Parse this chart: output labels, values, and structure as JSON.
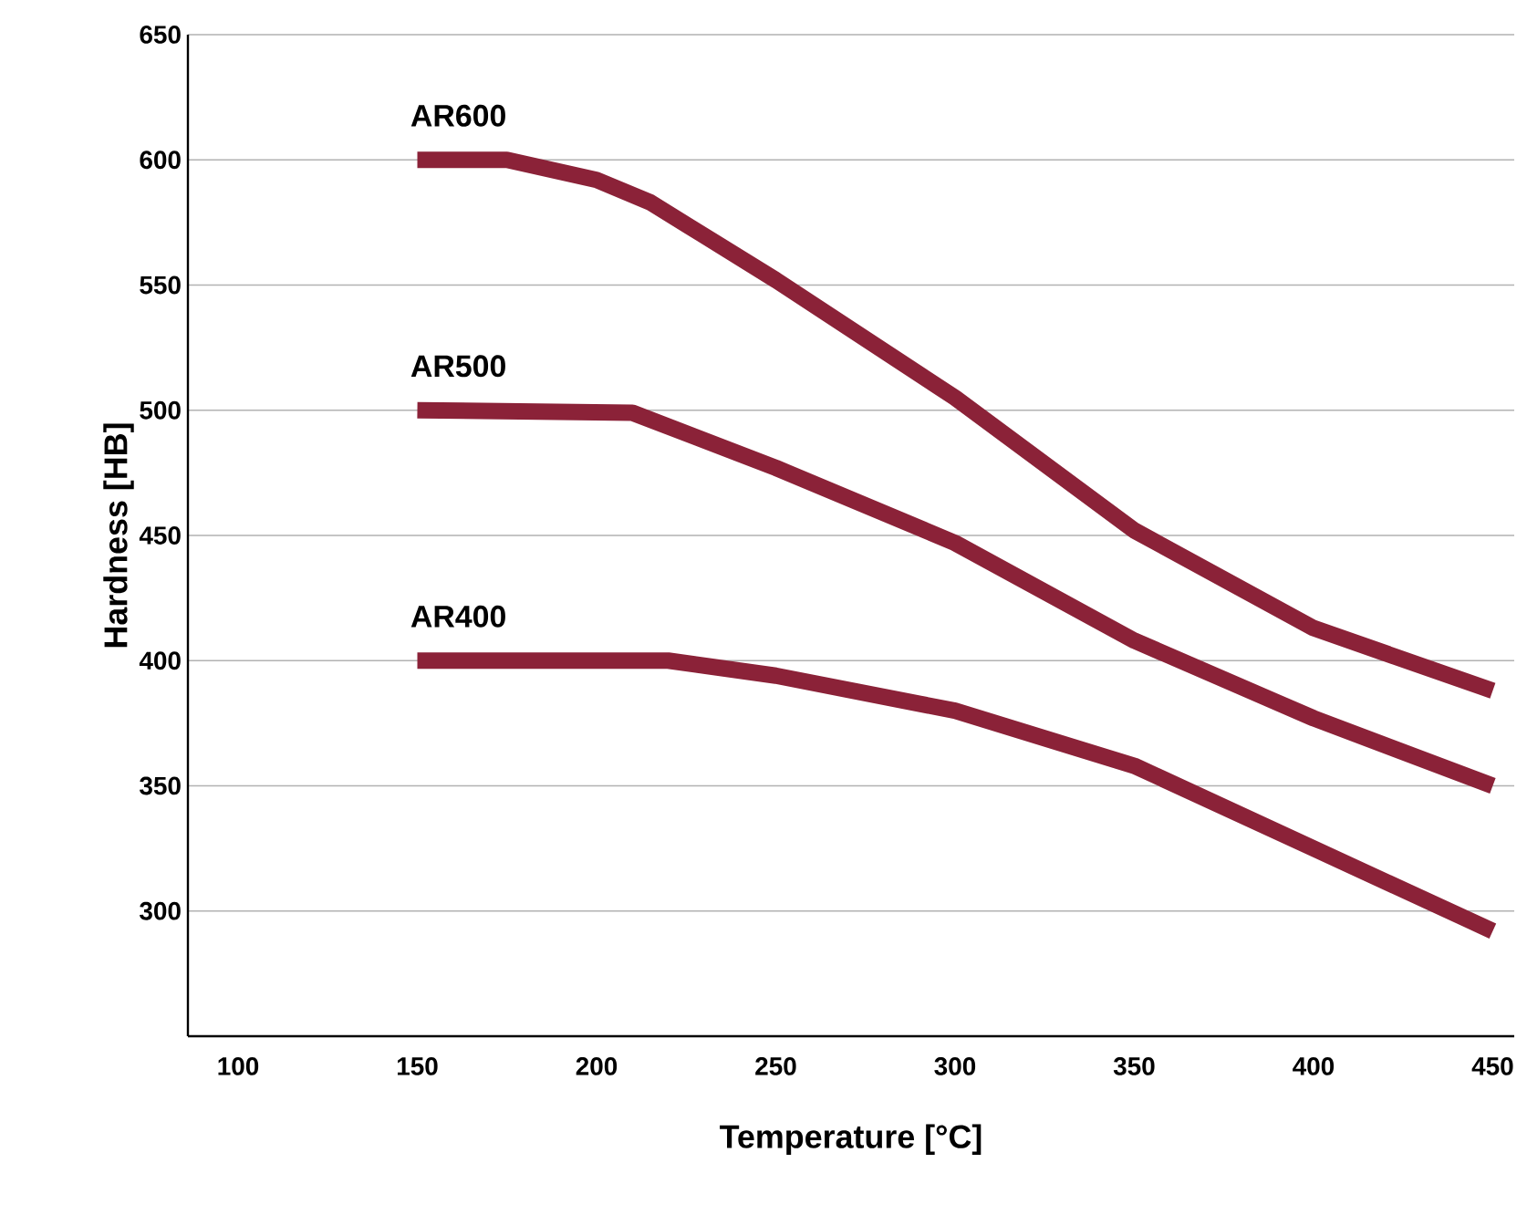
{
  "chart_data": {
    "type": "line",
    "xlabel": "Temperature [°C]",
    "ylabel": "Hardness [HB]",
    "xlim": [
      86,
      456
    ],
    "ylim": [
      250,
      650
    ],
    "xticks": [
      100,
      150,
      200,
      250,
      300,
      350,
      400,
      450
    ],
    "yticks": [
      300,
      350,
      400,
      450,
      500,
      550,
      600,
      650
    ],
    "grid": "y",
    "legend": false,
    "marker": "none",
    "line_style": "solid",
    "series": [
      {
        "name": "AR600",
        "color": "#8b2238",
        "x": [
          150,
          175,
          200,
          215,
          250,
          300,
          350,
          400,
          450
        ],
        "values": [
          600,
          600,
          592,
          583,
          552,
          505,
          452,
          413,
          388
        ]
      },
      {
        "name": "AR500",
        "color": "#8b2238",
        "x": [
          150,
          210,
          250,
          300,
          350,
          400,
          450
        ],
        "values": [
          500,
          499,
          477,
          447,
          408,
          377,
          350
        ]
      },
      {
        "name": "AR400",
        "color": "#8b2238",
        "x": [
          150,
          220,
          250,
          300,
          350,
          400,
          450
        ],
        "values": [
          400,
          400,
          394,
          380,
          358,
          325,
          292
        ]
      }
    ]
  }
}
